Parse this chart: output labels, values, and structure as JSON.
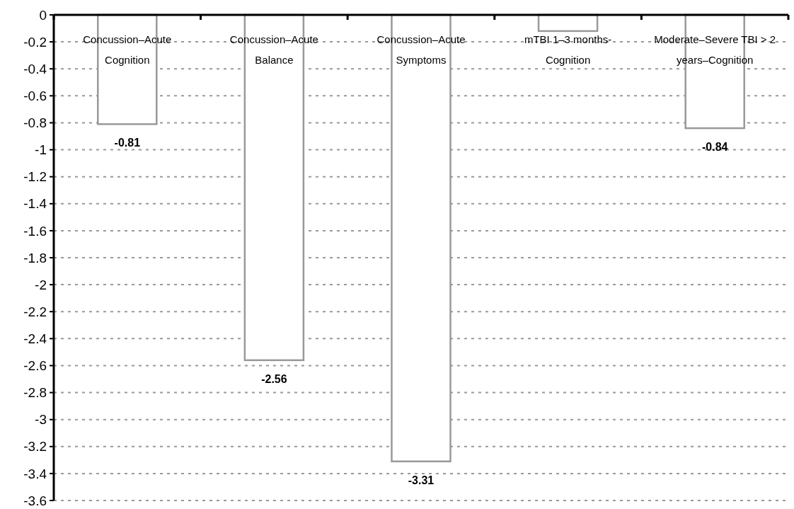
{
  "chart_data": {
    "type": "bar",
    "categories": [
      "Concussion–Acute Cognition",
      "Concussion–Acute Balance",
      "Concussion–Acute Symptoms",
      "mTBI 1–3 months- Cognition",
      "Moderate–Severe TBI > 2 years–Cognition"
    ],
    "values": [
      -0.81,
      -2.56,
      -3.31,
      -0.12,
      -0.84
    ],
    "value_labels": [
      "-0.81",
      "-2.56",
      "-3.31",
      null,
      "-0.84"
    ],
    "color": "#999999",
    "ylim": [
      -3.6,
      0
    ],
    "yticks": [
      -3.6,
      -3.4,
      -3.2,
      -3,
      -2.8,
      -2.6,
      -2.4,
      -2.2,
      -2,
      -1.8,
      -1.6,
      -1.4,
      -1.2,
      -1,
      -0.8,
      -0.6,
      -0.4,
      -0.2,
      0
    ],
    "grid": "y"
  }
}
